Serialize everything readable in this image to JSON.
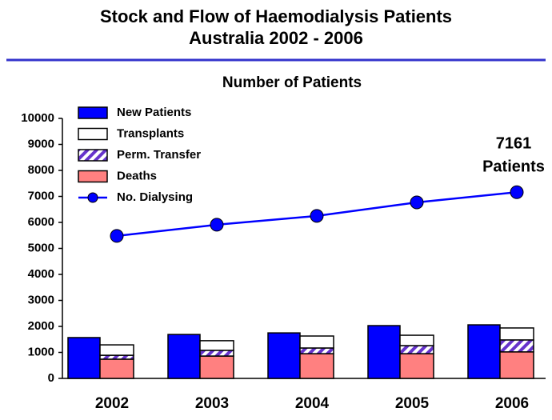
{
  "chart_data": {
    "type": "bar",
    "title": [
      "Stock and Flow of Haemodialysis Patients",
      "Australia   2002 - 2006"
    ],
    "subtitle": "Number of Patients",
    "categories": [
      "2002",
      "2003",
      "2004",
      "2005",
      "2006"
    ],
    "series": [
      {
        "name": "New Patients",
        "color": "#0000ff",
        "values": [
          1570,
          1690,
          1750,
          2030,
          2060
        ]
      },
      {
        "name": "Transplants",
        "color": "#ffffff",
        "stack": true,
        "values": [
          400,
          370,
          460,
          400,
          460
        ]
      },
      {
        "name": "Perm. Transfer",
        "color": "#6633cc",
        "pattern": "hatch",
        "stack": true,
        "values": [
          150,
          220,
          220,
          310,
          460
        ]
      },
      {
        "name": "Deaths",
        "color": "#ff8080",
        "stack": true,
        "values": [
          740,
          860,
          950,
          950,
          1020
        ]
      },
      {
        "name": "No. Dialysing",
        "color": "#0000ff",
        "kind": "line",
        "values": [
          5480,
          5910,
          6250,
          6770,
          7161
        ]
      }
    ],
    "annotation": [
      "7161",
      "Patients"
    ],
    "ylim": [
      0,
      10000
    ],
    "yticks": [
      0,
      1000,
      2000,
      3000,
      4000,
      5000,
      6000,
      7000,
      8000,
      9000,
      10000
    ],
    "legend": "top-left",
    "grid": false
  }
}
